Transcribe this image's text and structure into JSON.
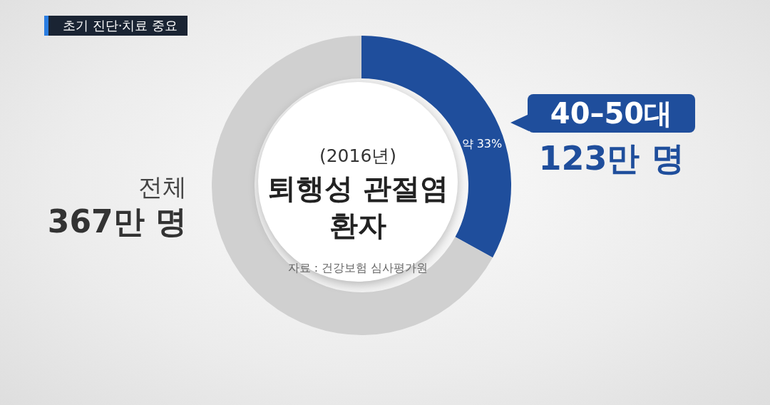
{
  "chart_data": {
    "type": "donut",
    "title": "퇴행성 관절염 환자",
    "subtitle": "(2016년)",
    "categories": [
      "40–50대",
      null
    ],
    "values": [
      33,
      67
    ],
    "colors": [
      "#1f4e9c",
      "#d0d0d0"
    ],
    "value_labels": [
      "약 33%",
      null
    ],
    "legend": false,
    "annotations": [
      "초기 진단·치료 중요",
      "전체",
      "367만 명",
      "123만 명",
      "자료 : 건강보험 심사평가원"
    ]
  }
}
